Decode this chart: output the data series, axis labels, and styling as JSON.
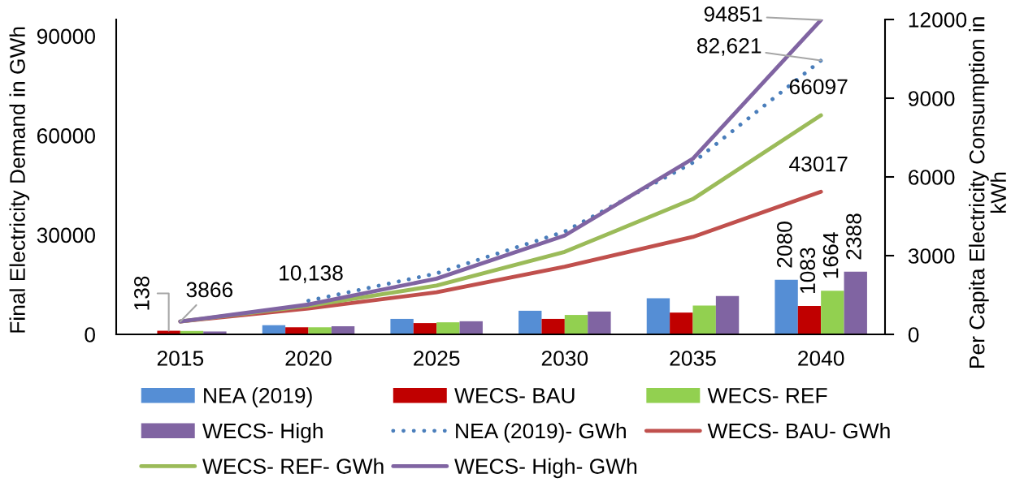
{
  "chart_data": {
    "type": "bar",
    "ylabel": "Final Electricity Demand in GWh",
    "y2label": "Per Capita Electricity Consumption in\nkWh",
    "categories": [
      "2015",
      "2020",
      "2025",
      "2030",
      "2035",
      "2040"
    ],
    "ylim": [
      0,
      95000
    ],
    "yticks": [
      0,
      30000,
      60000,
      90000
    ],
    "y2lim": [
      0,
      12000
    ],
    "y2ticks": [
      0,
      3000,
      6000,
      9000,
      12000
    ],
    "legend": "bottom",
    "series": [
      {
        "name": "NEA (2019)",
        "axis": "y2",
        "color": "#558ed5",
        "values": [
          null,
          350,
          590,
          900,
          1380,
          2080
        ],
        "value_labels": [
          null,
          null,
          null,
          null,
          null,
          "2080"
        ]
      },
      {
        "name": "WECS- BAU",
        "axis": "y2",
        "color": "#c00000",
        "values": [
          138,
          270,
          430,
          590,
          830,
          1083
        ],
        "value_labels": [
          "138",
          null,
          null,
          null,
          null,
          "1083"
        ]
      },
      {
        "name": "WECS- REF",
        "axis": "y2",
        "color": "#92d050",
        "values": [
          130,
          270,
          460,
          740,
          1100,
          1664
        ],
        "value_labels": [
          null,
          null,
          null,
          null,
          null,
          "1664"
        ]
      },
      {
        "name": "WECS- High",
        "axis": "y2",
        "color": "#8064a2",
        "values": [
          110,
          310,
          500,
          870,
          1460,
          2388
        ],
        "value_labels": [
          null,
          null,
          null,
          null,
          null,
          "2388"
        ]
      },
      {
        "name": "NEA (2019)- GWh",
        "type": "line",
        "line_style": "dotted",
        "color": "#4a7ebb",
        "values": [
          null,
          10138,
          18400,
          31000,
          51800,
          82621
        ],
        "value_labels": [
          null,
          "10,138",
          null,
          null,
          null,
          "82,621"
        ]
      },
      {
        "name": "WECS- BAU- GWh",
        "type": "line",
        "line_style": "solid",
        "color": "#c0504d",
        "values": [
          3900,
          7800,
          12700,
          20400,
          29400,
          43017
        ],
        "value_labels": [
          null,
          null,
          null,
          null,
          null,
          "43017"
        ]
      },
      {
        "name": "WECS- REF- GWh",
        "type": "line",
        "line_style": "solid",
        "color": "#9bbb59",
        "values": [
          3900,
          8600,
          14700,
          24900,
          40800,
          66097
        ],
        "value_labels": [
          null,
          null,
          null,
          null,
          null,
          "66097"
        ]
      },
      {
        "name": "WECS- High- GWh",
        "type": "line",
        "line_style": "solid",
        "color": "#8064a2",
        "values": [
          3866,
          9000,
          16800,
          29800,
          53000,
          94851
        ],
        "value_labels": [
          "3866",
          null,
          null,
          null,
          null,
          "94851"
        ]
      }
    ]
  }
}
